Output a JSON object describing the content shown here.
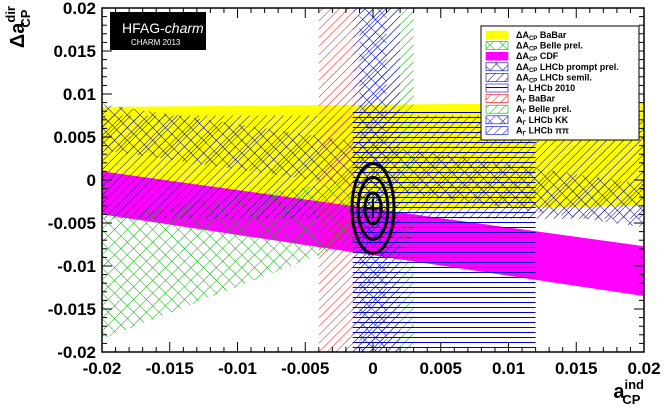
{
  "chart_data": {
    "type": "area",
    "title": "",
    "xlabel": {
      "main": "a",
      "sup": "ind",
      "sub": "CP"
    },
    "ylabel": {
      "main": "Δa",
      "sup": "dir",
      "sub": "CP"
    },
    "xlim": [
      -0.02,
      0.02
    ],
    "ylim": [
      -0.02,
      0.02
    ],
    "x_ticks": [
      "-0.02",
      "-0.015",
      "-0.01",
      "-0.005",
      "0",
      "0.005",
      "0.01",
      "0.015",
      "0.02"
    ],
    "y_ticks": [
      "-0.02",
      "-0.015",
      "-0.01",
      "-0.005",
      "0",
      "0.005",
      "0.01",
      "0.015",
      "0.02"
    ],
    "badge": {
      "title_plain": "HFAG-",
      "title_italic": "charm",
      "subtitle": "CHARM 2013"
    },
    "legend_position": "top-right",
    "series": [
      {
        "name": "ΔA_CP BaBar",
        "label_main": "ΔA",
        "label_sub": "CP",
        "label_rest": " BaBar",
        "kind": "band_h",
        "color": "#ffff00",
        "pattern": "solid",
        "x_range": [
          -0.02,
          0.02
        ],
        "y_at_xmin": [
          -0.004,
          0.0085
        ],
        "y_at_xmax": [
          -0.003,
          0.009
        ]
      },
      {
        "name": "ΔA_CP Belle prel.",
        "label_main": "ΔA",
        "label_sub": "CP",
        "label_rest": " Belle prel.",
        "kind": "band_h",
        "color": "#00b000",
        "pattern": "crosshatch",
        "x_range": [
          -0.02,
          0.0005
        ],
        "y_at_xmin": [
          -0.0185,
          -0.0042
        ],
        "y_at_xmax": [
          -0.006,
          0.0004
        ]
      },
      {
        "name": "ΔA_CP CDF",
        "label_main": "ΔA",
        "label_sub": "CP",
        "label_rest": " CDF",
        "kind": "band_h",
        "color": "#ff00ff",
        "pattern": "solid",
        "x_range": [
          -0.02,
          0.02
        ],
        "y_at_xmin": [
          -0.004,
          0.001
        ],
        "y_at_xmax": [
          -0.0135,
          -0.0077
        ]
      },
      {
        "name": "ΔA_CP LHCb prompt prel.",
        "label_main": "ΔA",
        "label_sub": "CP",
        "label_rest": " LHCb prompt prel.",
        "kind": "band_h",
        "color": "#000099",
        "pattern": "crosshatch",
        "x_range": [
          -0.02,
          0.02
        ],
        "y_at_xmin": [
          0.0035,
          0.0088
        ],
        "y_at_xmax": [
          -0.0055,
          -0.0005
        ]
      },
      {
        "name": "ΔA_CP LHCb semil.",
        "label_main": "ΔA",
        "label_sub": "CP",
        "label_rest": " LHCb semil.",
        "kind": "band_h",
        "color": "#000099",
        "pattern": "diagonal",
        "x_range": [
          -0.02,
          0.02
        ],
        "y_at_xmin": [
          -0.0045,
          0.0075
        ],
        "y_at_xmax": [
          -0.0045,
          0.0075
        ]
      },
      {
        "name": "A_Γ LHCb 2010",
        "label_main": "A",
        "label_sub": "Γ",
        "label_rest": " LHCb 2010",
        "kind": "band_v",
        "color": "#0000cc",
        "pattern": "horizontal",
        "x_range": [
          -0.0015,
          0.012
        ],
        "y_range": [
          -0.02,
          0.008
        ]
      },
      {
        "name": "A_Γ BaBar",
        "label_main": "A",
        "label_sub": "Γ",
        "label_rest": " BaBar",
        "kind": "band_v",
        "color": "#ff0000",
        "pattern": "diagonal",
        "x_range": [
          -0.004,
          0.002
        ],
        "y_range": [
          -0.02,
          0.02
        ]
      },
      {
        "name": "A_Γ Belle prel.",
        "label_main": "A",
        "label_sub": "Γ",
        "label_rest": " Belle prel.",
        "kind": "band_v",
        "color": "#00b000",
        "pattern": "diagonal",
        "x_range": [
          -0.001,
          0.003
        ],
        "y_range": [
          -0.02,
          0.02
        ]
      },
      {
        "name": "A_Γ LHCb KK",
        "label_main": "A",
        "label_sub": "Γ",
        "label_rest": " LHCb KK",
        "kind": "band_v",
        "color": "#0000ff",
        "pattern": "crosshatch",
        "x_range": [
          -0.001,
          0.001
        ],
        "y_range": [
          -0.02,
          0.02
        ]
      },
      {
        "name": "A_Γ LHCb ππ",
        "label_main": "A",
        "label_sub": "Γ",
        "label_rest": " LHCb ππ",
        "kind": "band_v",
        "color": "#0000ff",
        "pattern": "diagonal",
        "x_range": [
          -0.0015,
          0.002
        ],
        "y_range": [
          -0.02,
          0.02
        ]
      }
    ],
    "fit": {
      "center": [
        0.0,
        -0.0033
      ],
      "ellipses": [
        {
          "rx": 0.00155,
          "ry": 0.0052
        },
        {
          "rx": 0.0011,
          "ry": 0.0036
        },
        {
          "rx": 0.0006,
          "ry": 0.0018
        }
      ]
    }
  },
  "colors": {
    "frame": "#000000",
    "badge_bg": "#000000",
    "badge_text": "#ffffff",
    "background": "#ffffff"
  }
}
